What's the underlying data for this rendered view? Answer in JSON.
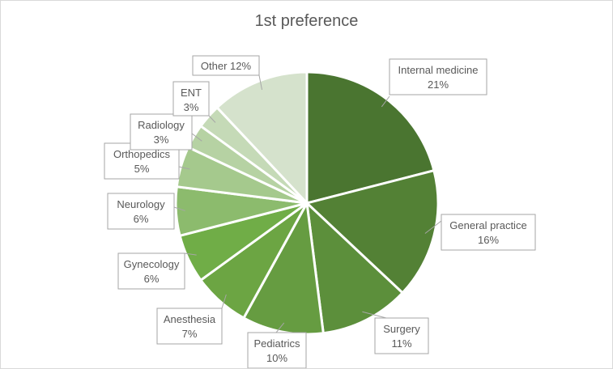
{
  "chart_data": {
    "type": "pie",
    "title": "1st preference",
    "slices": [
      {
        "label": "Internal medicine",
        "pct_label": "21%",
        "value": 21,
        "color": "#4a7530"
      },
      {
        "label": "General practice",
        "pct_label": "16%",
        "value": 16,
        "color": "#538135"
      },
      {
        "label": "Surgery",
        "pct_label": "11%",
        "value": 11,
        "color": "#5c8f3b"
      },
      {
        "label": "Pediatrics",
        "pct_label": "10%",
        "value": 10,
        "color": "#669c41"
      },
      {
        "label": "Anesthesia",
        "pct_label": "7%",
        "value": 7,
        "color": "#6ca543"
      },
      {
        "label": "Gynecology",
        "pct_label": "6%",
        "value": 6,
        "color": "#70ad47"
      },
      {
        "label": "Neurology",
        "pct_label": "6%",
        "value": 6,
        "color": "#8cbb6d"
      },
      {
        "label": "Orthopedics",
        "pct_label": "5%",
        "value": 5,
        "color": "#a5c98d"
      },
      {
        "label": "Radiology",
        "pct_label": "3%",
        "value": 3,
        "color": "#b6d2a3"
      },
      {
        "label": "ENT",
        "pct_label": "3%",
        "value": 3,
        "color": "#c5dab7"
      },
      {
        "label": "Other",
        "pct_label": "12%",
        "value": 12,
        "color": "#d5e2cc"
      }
    ]
  }
}
